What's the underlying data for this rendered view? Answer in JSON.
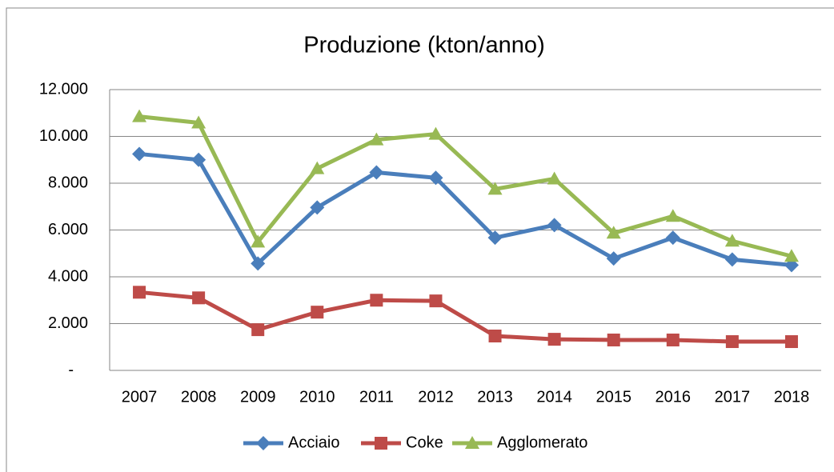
{
  "chart_data": {
    "type": "line",
    "title": "Produzione (kton/anno)",
    "categories": [
      "2007",
      "2008",
      "2009",
      "2010",
      "2011",
      "2012",
      "2013",
      "2014",
      "2015",
      "2016",
      "2017",
      "2018"
    ],
    "series": [
      {
        "name": "Acciaio",
        "color": "#4a7ebb",
        "marker": "diamond",
        "values": [
          9250,
          9000,
          4570,
          6960,
          8460,
          8230,
          5670,
          6210,
          4780,
          5670,
          4740,
          4500
        ]
      },
      {
        "name": "Coke",
        "color": "#be4b48",
        "marker": "square",
        "values": [
          3340,
          3100,
          1740,
          2490,
          3000,
          2970,
          1470,
          1330,
          1300,
          1300,
          1230,
          1230
        ]
      },
      {
        "name": "Agglomerato",
        "color": "#98b954",
        "marker": "triangle",
        "values": [
          10850,
          10580,
          5490,
          8630,
          9860,
          10100,
          7750,
          8190,
          5870,
          6590,
          5530,
          4880
        ]
      }
    ],
    "ylim": [
      0,
      12000
    ],
    "yticks": [
      {
        "value": 0,
        "label": "-"
      },
      {
        "value": 2000,
        "label": "2.000"
      },
      {
        "value": 4000,
        "label": "4.000"
      },
      {
        "value": 6000,
        "label": "6.000"
      },
      {
        "value": 8000,
        "label": "8.000"
      },
      {
        "value": 10000,
        "label": "10.000"
      },
      {
        "value": 12000,
        "label": "12.000"
      }
    ],
    "grid": true,
    "legend": "bottom"
  }
}
